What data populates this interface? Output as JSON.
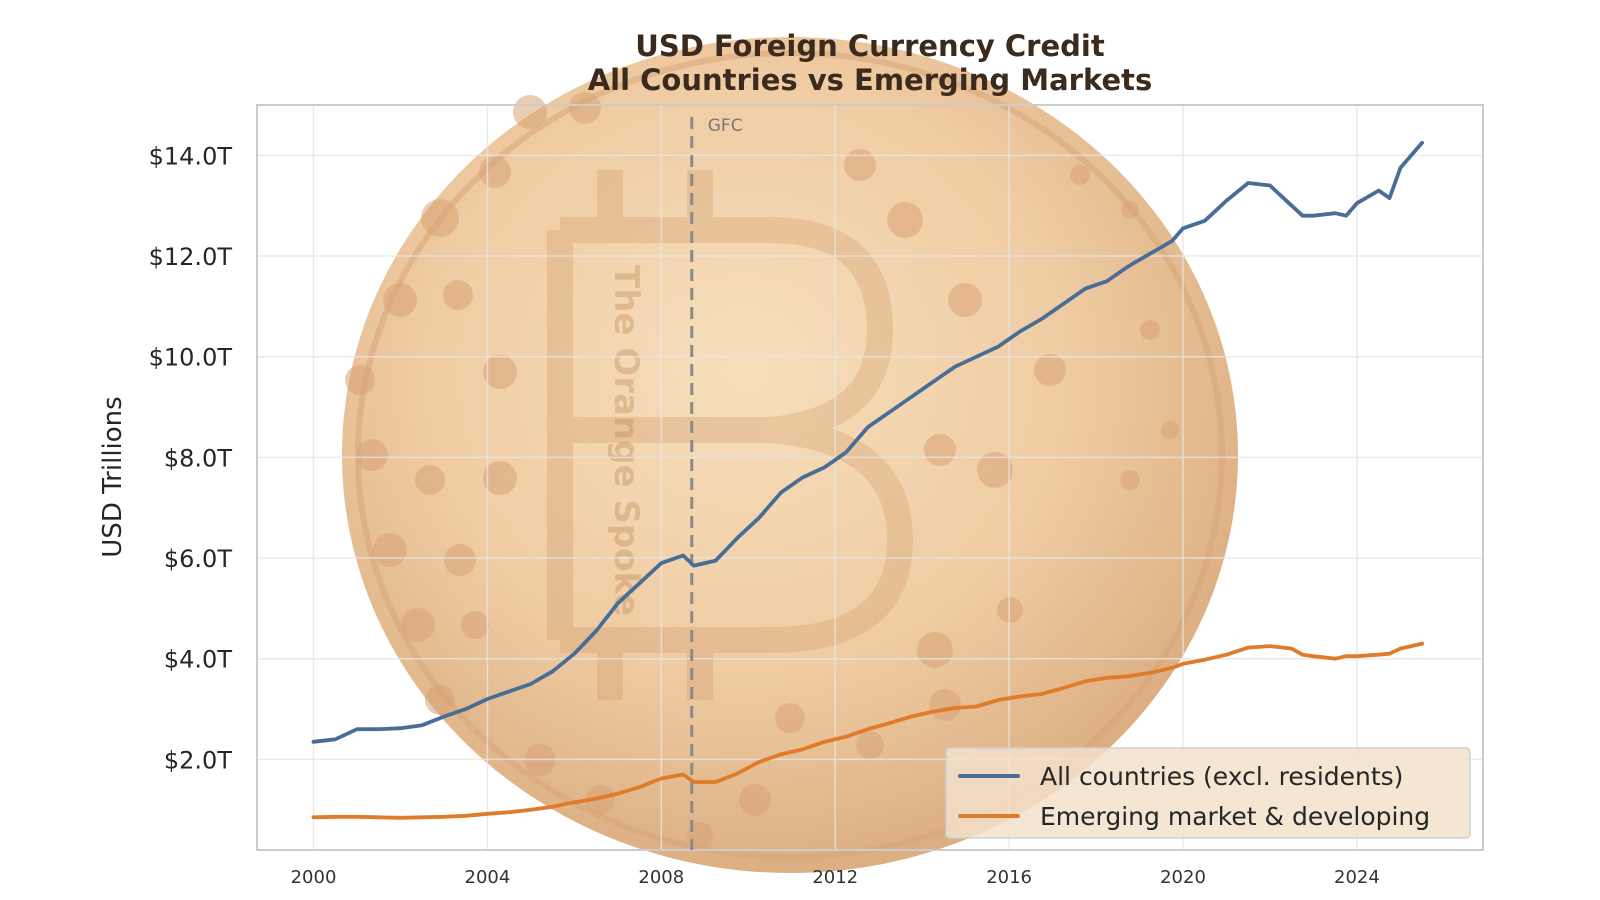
{
  "chart_data": {
    "type": "line",
    "title": "USD Foreign Currency Credit",
    "subtitle": "All Countries vs Emerging Markets",
    "xlabel": "",
    "ylabel": "USD Trillions",
    "xlim": [
      1998.7,
      2026.9
    ],
    "ylim": [
      0.2,
      15.0
    ],
    "xticks": [
      {
        "value": 2000,
        "label": "2000"
      },
      {
        "value": 2004,
        "label": "2004"
      },
      {
        "value": 2008,
        "label": "2008"
      },
      {
        "value": 2012,
        "label": "2012"
      },
      {
        "value": 2016,
        "label": "2016"
      },
      {
        "value": 2020,
        "label": "2020"
      },
      {
        "value": 2024,
        "label": "2024"
      }
    ],
    "yticks": [
      {
        "value": 2,
        "label": "$2.0T"
      },
      {
        "value": 4,
        "label": "$4.0T"
      },
      {
        "value": 6,
        "label": "$6.0T"
      },
      {
        "value": 8,
        "label": "$8.0T"
      },
      {
        "value": 10,
        "label": "$10.0T"
      },
      {
        "value": 12,
        "label": "$12.0T"
      },
      {
        "value": 14,
        "label": "$14.0T"
      }
    ],
    "grid": true,
    "legend_position": "lower-right",
    "annotations": [
      {
        "type": "vline",
        "x": 2008.7,
        "label": "GFC",
        "style": "dashed"
      }
    ],
    "series": [
      {
        "name": "All countries (excl. residents)",
        "color": "#4a6d98",
        "x": [
          2000.0,
          2000.5,
          2001.0,
          2001.5,
          2002.0,
          2002.5,
          2003.0,
          2003.5,
          2004.0,
          2004.5,
          2005.0,
          2005.5,
          2006.0,
          2006.5,
          2007.0,
          2007.5,
          2008.0,
          2008.5,
          2008.75,
          2009.25,
          2009.75,
          2010.25,
          2010.75,
          2011.25,
          2011.75,
          2012.25,
          2012.75,
          2013.25,
          2013.75,
          2014.25,
          2014.75,
          2015.25,
          2015.75,
          2016.25,
          2016.75,
          2017.25,
          2017.75,
          2018.25,
          2018.75,
          2019.25,
          2019.75,
          2020.0,
          2020.5,
          2021.0,
          2021.5,
          2022.0,
          2022.5,
          2022.75,
          2023.0,
          2023.5,
          2023.75,
          2024.0,
          2024.5,
          2024.75,
          2025.0,
          2025.5
        ],
        "values": [
          2.35,
          2.4,
          2.6,
          2.6,
          2.62,
          2.68,
          2.85,
          3.0,
          3.2,
          3.35,
          3.5,
          3.75,
          4.1,
          4.55,
          5.1,
          5.5,
          5.9,
          6.05,
          5.85,
          5.95,
          6.4,
          6.8,
          7.3,
          7.6,
          7.8,
          8.1,
          8.6,
          8.9,
          9.2,
          9.5,
          9.8,
          10.0,
          10.2,
          10.5,
          10.75,
          11.05,
          11.35,
          11.5,
          11.8,
          12.05,
          12.3,
          12.55,
          12.7,
          13.1,
          13.45,
          13.4,
          13.0,
          12.8,
          12.8,
          12.85,
          12.8,
          13.05,
          13.3,
          13.15,
          13.75,
          14.25
        ]
      },
      {
        "name": "Emerging market & developing",
        "color": "#e07b2a",
        "x": [
          2000.0,
          2000.5,
          2001.0,
          2001.5,
          2002.0,
          2002.5,
          2003.0,
          2003.5,
          2004.0,
          2004.5,
          2005.0,
          2005.5,
          2006.0,
          2006.5,
          2007.0,
          2007.5,
          2008.0,
          2008.5,
          2008.75,
          2009.25,
          2009.75,
          2010.25,
          2010.75,
          2011.25,
          2011.75,
          2012.25,
          2012.75,
          2013.25,
          2013.75,
          2014.25,
          2014.75,
          2015.25,
          2015.75,
          2016.25,
          2016.75,
          2017.25,
          2017.75,
          2018.25,
          2018.75,
          2019.25,
          2019.75,
          2020.0,
          2020.5,
          2021.0,
          2021.5,
          2022.0,
          2022.5,
          2022.75,
          2023.0,
          2023.5,
          2023.75,
          2024.0,
          2024.5,
          2024.75,
          2025.0,
          2025.5
        ],
        "values": [
          0.85,
          0.86,
          0.86,
          0.85,
          0.84,
          0.85,
          0.86,
          0.88,
          0.92,
          0.95,
          1.0,
          1.06,
          1.15,
          1.22,
          1.32,
          1.45,
          1.62,
          1.7,
          1.55,
          1.55,
          1.72,
          1.95,
          2.1,
          2.2,
          2.35,
          2.45,
          2.6,
          2.72,
          2.85,
          2.95,
          3.02,
          3.05,
          3.18,
          3.25,
          3.3,
          3.42,
          3.55,
          3.62,
          3.65,
          3.72,
          3.82,
          3.9,
          3.98,
          4.08,
          4.22,
          4.25,
          4.2,
          4.08,
          4.05,
          4.0,
          4.05,
          4.05,
          4.08,
          4.1,
          4.2,
          4.3
        ]
      }
    ]
  },
  "watermark": {
    "text": "The Orange Spoke"
  }
}
